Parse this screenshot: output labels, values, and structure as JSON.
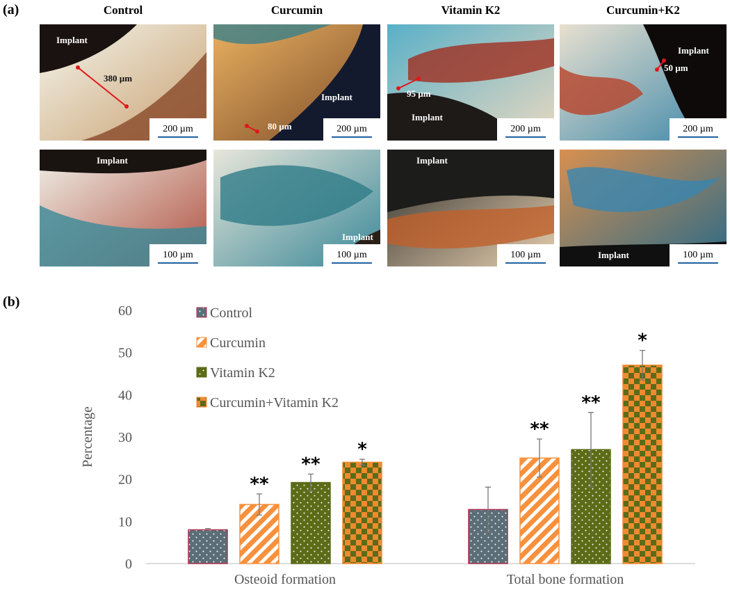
{
  "panel_a": {
    "label": "(a)",
    "columns": [
      "Control",
      "Curcumin",
      "Vitamin K2",
      "Curcumin+K2"
    ],
    "images": [
      {
        "labels": [
          "Implant",
          "380 µm"
        ],
        "scale_bar": "200 µm"
      },
      {
        "labels": [
          "80 µm",
          "Implant"
        ],
        "scale_bar": "200 µm"
      },
      {
        "labels": [
          "95 µm",
          "Implant"
        ],
        "scale_bar": "200 µm"
      },
      {
        "labels": [
          "Implant",
          "50 µm"
        ],
        "scale_bar": "200 µm"
      },
      {
        "labels": [
          "Implant"
        ],
        "scale_bar": "100 µm"
      },
      {
        "labels": [
          "Implant"
        ],
        "scale_bar": "100 µm"
      },
      {
        "labels": [
          "Implant"
        ],
        "scale_bar": "100 µm"
      },
      {
        "labels": [
          "Implant"
        ],
        "scale_bar": "100 µm"
      }
    ]
  },
  "panel_b": {
    "label": "(b)"
  },
  "chart_data": {
    "type": "bar",
    "ylabel": "Percentage",
    "categories": [
      "Osteoid formation",
      "Total bone formation"
    ],
    "series": [
      {
        "name": "Control",
        "color": "#5b6e78",
        "edgecolor": "#b0304f",
        "pattern": "dots",
        "values": [
          8,
          12.8
        ],
        "errors": [
          0.3,
          5.3
        ]
      },
      {
        "name": "Curcumin",
        "color": "#f7913d",
        "edgecolor": "#f7913d",
        "pattern": "stripes",
        "values": [
          14,
          25
        ],
        "errors": [
          2.5,
          4.5
        ],
        "significance": [
          "**",
          "**"
        ]
      },
      {
        "name": "Vitamin K2",
        "color": "#5b6b17",
        "edgecolor": "#5b6b17",
        "pattern": "dots",
        "values": [
          19.2,
          27
        ],
        "errors": [
          2,
          8.8
        ],
        "significance": [
          "**",
          "**"
        ]
      },
      {
        "name": "Curcumin+Vitamin K2",
        "color": "#f08a30",
        "edgecolor": "#f08a30",
        "pattern": "checker",
        "values": [
          24,
          47
        ],
        "errors": [
          0.7,
          3.5
        ],
        "significance": [
          "*",
          "*"
        ]
      }
    ],
    "ylim": [
      0,
      60
    ],
    "yticks": [
      0,
      10,
      20,
      30,
      40,
      50,
      60
    ],
    "legend": "upper left"
  }
}
